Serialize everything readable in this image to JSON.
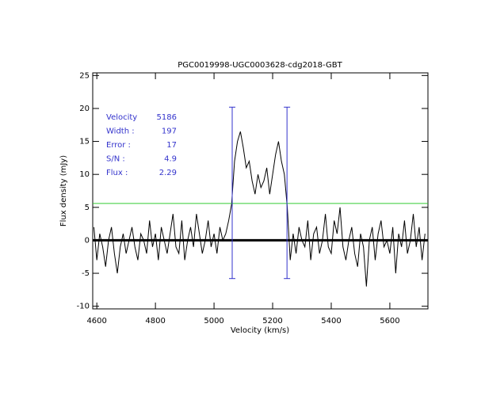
{
  "chart_data": {
    "type": "line",
    "title": "PGC0019998-UGC0003628-cdg2018-GBT",
    "xlabel": "Velocity (km/s)",
    "ylabel": "Flux density (mJy)",
    "xlim": [
      4586,
      5730
    ],
    "ylim": [
      -10.4,
      25.4
    ],
    "xticks": [
      4600,
      4800,
      5000,
      5200,
      5400,
      5600
    ],
    "yticks": [
      -10,
      -5,
      0,
      5,
      10,
      15,
      20,
      25
    ],
    "x": [
      4590,
      4600,
      4610,
      4620,
      4630,
      4640,
      4650,
      4660,
      4670,
      4680,
      4690,
      4700,
      4710,
      4720,
      4730,
      4740,
      4750,
      4760,
      4770,
      4780,
      4790,
      4800,
      4810,
      4820,
      4830,
      4840,
      4850,
      4860,
      4870,
      4880,
      4890,
      4900,
      4910,
      4920,
      4930,
      4940,
      4950,
      4960,
      4970,
      4980,
      4990,
      5000,
      5010,
      5020,
      5030,
      5040,
      5050,
      5060,
      5070,
      5080,
      5090,
      5100,
      5110,
      5120,
      5130,
      5140,
      5150,
      5160,
      5170,
      5180,
      5190,
      5200,
      5210,
      5220,
      5230,
      5240,
      5250,
      5260,
      5270,
      5280,
      5290,
      5300,
      5310,
      5320,
      5330,
      5340,
      5350,
      5360,
      5370,
      5380,
      5390,
      5400,
      5410,
      5420,
      5430,
      5440,
      5450,
      5460,
      5470,
      5480,
      5490,
      5500,
      5510,
      5520,
      5530,
      5540,
      5550,
      5560,
      5570,
      5580,
      5590,
      5600,
      5610,
      5620,
      5630,
      5640,
      5650,
      5660,
      5670,
      5680,
      5690,
      5700,
      5710,
      5720
    ],
    "series": [
      {
        "color": "#000000",
        "values": [
          2,
          -3,
          1,
          -1,
          -4,
          0,
          2,
          -2,
          -5,
          -1,
          1,
          -2,
          0,
          2,
          -1,
          -3,
          1,
          0,
          -2,
          3,
          -1,
          1,
          -3,
          2,
          0,
          -2,
          1,
          4,
          -1,
          -2,
          3,
          -3,
          0,
          2,
          -1,
          4,
          1,
          -2,
          0,
          3,
          -1,
          1,
          -2,
          2,
          0,
          1,
          3,
          5.5,
          12,
          15,
          16.5,
          14,
          11,
          12,
          9,
          7,
          10,
          8,
          9,
          11,
          7,
          10,
          13,
          15,
          12,
          10,
          5,
          -3,
          1,
          -2,
          2,
          0,
          -1,
          3,
          -3,
          1,
          2,
          -2,
          0,
          4,
          -1,
          -2,
          3,
          1,
          5,
          -1,
          -3,
          0,
          2,
          -2,
          -4,
          1,
          -1,
          -7,
          0,
          2,
          -3,
          1,
          3,
          -1,
          0,
          -2,
          2,
          -5,
          1,
          -1,
          3,
          -2,
          0,
          4,
          -1,
          2,
          -3,
          1
        ]
      }
    ],
    "threshold": {
      "value": 5.6,
      "color": "#33cc33"
    },
    "markers": {
      "color": "#3333cc",
      "x": [
        5062,
        5249
      ],
      "ymin": -5.8,
      "ymax": 20.2
    },
    "annotations": [
      {
        "label": "Velocity",
        "value": 5186
      },
      {
        "label": "Width :",
        "value": 197
      },
      {
        "label": "Error :",
        "value": 17
      },
      {
        "label": "S/N :",
        "value": 4.9
      },
      {
        "label": "Flux :",
        "value": 2.29
      }
    ]
  }
}
